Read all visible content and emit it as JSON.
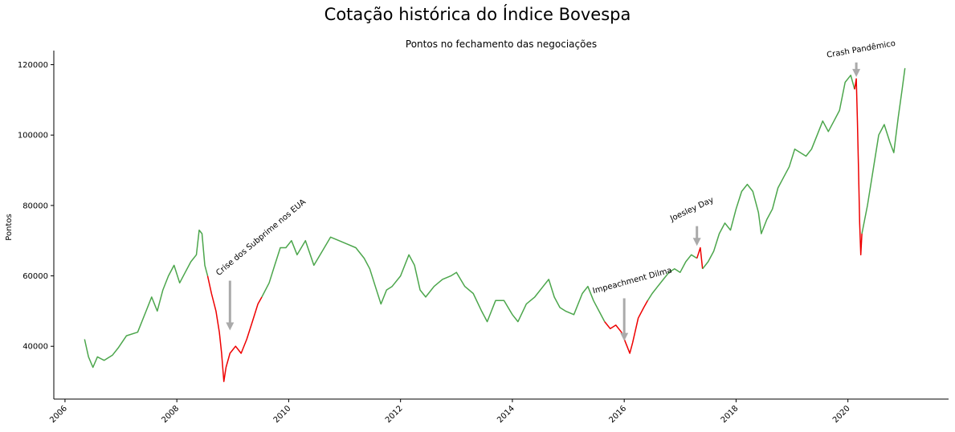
{
  "chart_data": {
    "type": "line",
    "title": "Cotação histórica do Índice Bovespa",
    "subtitle": "Pontos no fechamento das negociações",
    "xlabel": "",
    "ylabel": "Pontos",
    "xlim": [
      2005.8,
      2021.8
    ],
    "ylim": [
      25000,
      124000
    ],
    "x_ticks": [
      2006,
      2008,
      2010,
      2012,
      2014,
      2016,
      2018,
      2020
    ],
    "y_ticks": [
      40000,
      60000,
      80000,
      100000,
      120000
    ],
    "x_tick_labels": [
      "2006",
      "2008",
      "2010",
      "2012",
      "2014",
      "2016",
      "2018",
      "2020"
    ],
    "y_tick_labels": [
      "40000",
      "60000",
      "80000",
      "100000",
      "120000"
    ],
    "grid": false,
    "colors": {
      "normal": "#4ca64c",
      "crisis": "#ee0000",
      "arrow": "#aaaaaa"
    },
    "series": [
      {
        "values": [
          [
            2006.35,
            42000
          ],
          [
            2006.42,
            37000
          ],
          [
            2006.5,
            34000
          ],
          [
            2006.58,
            37000
          ],
          [
            2006.7,
            36000
          ],
          [
            2006.85,
            37500
          ],
          [
            2006.95,
            39500
          ],
          [
            2007.1,
            43000
          ],
          [
            2007.3,
            44000
          ],
          [
            2007.45,
            50000
          ],
          [
            2007.55,
            54000
          ],
          [
            2007.65,
            50000
          ],
          [
            2007.75,
            56000
          ],
          [
            2007.85,
            60000
          ],
          [
            2007.95,
            63000
          ],
          [
            2008.05,
            58000
          ],
          [
            2008.15,
            61000
          ],
          [
            2008.25,
            64000
          ],
          [
            2008.35,
            66000
          ],
          [
            2008.4,
            73000
          ],
          [
            2008.45,
            72000
          ],
          [
            2008.5,
            63000
          ],
          [
            2008.55,
            60000
          ]
        ]
      },
      {
        "crisis": true,
        "values": [
          [
            2008.55,
            60000
          ],
          [
            2008.62,
            55000
          ],
          [
            2008.7,
            50000
          ],
          [
            2008.76,
            44000
          ],
          [
            2008.8,
            38000
          ],
          [
            2008.84,
            30000
          ],
          [
            2008.88,
            34000
          ],
          [
            2008.95,
            38000
          ],
          [
            2009.05,
            40000
          ],
          [
            2009.15,
            38000
          ],
          [
            2009.25,
            42000
          ],
          [
            2009.35,
            47000
          ],
          [
            2009.45,
            52000
          ],
          [
            2009.52,
            54000
          ]
        ]
      },
      {
        "values": [
          [
            2009.52,
            54000
          ],
          [
            2009.65,
            58000
          ],
          [
            2009.75,
            63000
          ],
          [
            2009.85,
            68000
          ],
          [
            2009.95,
            68000
          ],
          [
            2010.05,
            70000
          ],
          [
            2010.15,
            66000
          ],
          [
            2010.3,
            70000
          ],
          [
            2010.45,
            63000
          ],
          [
            2010.6,
            67000
          ],
          [
            2010.75,
            71000
          ],
          [
            2010.9,
            70000
          ],
          [
            2011.05,
            69000
          ],
          [
            2011.2,
            68000
          ],
          [
            2011.35,
            65000
          ],
          [
            2011.45,
            62000
          ],
          [
            2011.55,
            57000
          ],
          [
            2011.65,
            52000
          ],
          [
            2011.75,
            56000
          ],
          [
            2011.85,
            57000
          ],
          [
            2012.0,
            60000
          ],
          [
            2012.15,
            66000
          ],
          [
            2012.25,
            63000
          ],
          [
            2012.35,
            56000
          ],
          [
            2012.45,
            54000
          ],
          [
            2012.6,
            57000
          ],
          [
            2012.75,
            59000
          ],
          [
            2012.9,
            60000
          ],
          [
            2013.0,
            61000
          ],
          [
            2013.15,
            57000
          ],
          [
            2013.3,
            55000
          ],
          [
            2013.45,
            50000
          ],
          [
            2013.55,
            47000
          ],
          [
            2013.7,
            53000
          ],
          [
            2013.85,
            53000
          ],
          [
            2014.0,
            49000
          ],
          [
            2014.1,
            47000
          ],
          [
            2014.25,
            52000
          ],
          [
            2014.4,
            54000
          ],
          [
            2014.55,
            57000
          ],
          [
            2014.65,
            59000
          ],
          [
            2014.75,
            54000
          ],
          [
            2014.85,
            51000
          ],
          [
            2014.95,
            50000
          ],
          [
            2015.1,
            49000
          ],
          [
            2015.25,
            55000
          ],
          [
            2015.35,
            57000
          ],
          [
            2015.45,
            53000
          ],
          [
            2015.55,
            50000
          ],
          [
            2015.65,
            47000
          ]
        ]
      },
      {
        "crisis": true,
        "values": [
          [
            2015.65,
            47000
          ],
          [
            2015.75,
            45000
          ],
          [
            2015.85,
            46000
          ],
          [
            2015.95,
            44000
          ],
          [
            2016.05,
            40000
          ],
          [
            2016.1,
            38000
          ],
          [
            2016.15,
            41000
          ],
          [
            2016.25,
            48000
          ],
          [
            2016.35,
            51000
          ],
          [
            2016.42,
            53000
          ]
        ]
      },
      {
        "values": [
          [
            2016.42,
            53000
          ],
          [
            2016.5,
            55000
          ],
          [
            2016.6,
            57000
          ],
          [
            2016.7,
            59000
          ],
          [
            2016.8,
            61000
          ],
          [
            2016.9,
            62000
          ],
          [
            2017.0,
            61000
          ],
          [
            2017.1,
            64000
          ],
          [
            2017.2,
            66000
          ],
          [
            2017.3,
            65000
          ]
        ]
      },
      {
        "crisis": true,
        "values": [
          [
            2017.3,
            65000
          ],
          [
            2017.36,
            68000
          ],
          [
            2017.4,
            62000
          ]
        ]
      },
      {
        "values": [
          [
            2017.4,
            62000
          ],
          [
            2017.5,
            64000
          ],
          [
            2017.6,
            67000
          ],
          [
            2017.7,
            72000
          ],
          [
            2017.8,
            75000
          ],
          [
            2017.9,
            73000
          ],
          [
            2018.0,
            79000
          ],
          [
            2018.1,
            84000
          ],
          [
            2018.2,
            86000
          ],
          [
            2018.3,
            84000
          ],
          [
            2018.4,
            78000
          ],
          [
            2018.45,
            72000
          ],
          [
            2018.55,
            76000
          ],
          [
            2018.65,
            79000
          ],
          [
            2018.75,
            85000
          ],
          [
            2018.85,
            88000
          ],
          [
            2018.95,
            91000
          ],
          [
            2019.05,
            96000
          ],
          [
            2019.15,
            95000
          ],
          [
            2019.25,
            94000
          ],
          [
            2019.35,
            96000
          ],
          [
            2019.45,
            100000
          ],
          [
            2019.55,
            104000
          ],
          [
            2019.65,
            101000
          ],
          [
            2019.75,
            104000
          ],
          [
            2019.85,
            107000
          ],
          [
            2019.95,
            115000
          ],
          [
            2020.05,
            117000
          ],
          [
            2020.12,
            113000
          ]
        ]
      },
      {
        "crisis": true,
        "values": [
          [
            2020.12,
            113000
          ],
          [
            2020.15,
            116000
          ],
          [
            2020.17,
            104000
          ],
          [
            2020.19,
            90000
          ],
          [
            2020.21,
            75000
          ],
          [
            2020.23,
            66000
          ],
          [
            2020.25,
            72000
          ]
        ]
      },
      {
        "values": [
          [
            2020.25,
            72000
          ],
          [
            2020.35,
            80000
          ],
          [
            2020.45,
            90000
          ],
          [
            2020.55,
            100000
          ],
          [
            2020.65,
            103000
          ],
          [
            2020.75,
            98000
          ],
          [
            2020.82,
            95000
          ],
          [
            2020.9,
            105000
          ],
          [
            2020.97,
            113000
          ],
          [
            2021.02,
            119000
          ]
        ]
      }
    ],
    "annotations": [
      {
        "text": "Crise dos Subprime nos EUA",
        "x": 2008.95,
        "y": 44500,
        "text_x": 2008.75,
        "text_y": 60000,
        "angle": 40,
        "size": 10
      },
      {
        "text": "Impeachment Dilma",
        "x": 2016.0,
        "y": 41500,
        "text_x": 2015.45,
        "text_y": 55000,
        "angle": 15,
        "size": 9
      },
      {
        "text": "Joesley Day",
        "x": 2017.3,
        "y": 68500,
        "text_x": 2016.85,
        "text_y": 75500,
        "angle": 25,
        "size": 10
      },
      {
        "text": "Crash Pandêmico",
        "x": 2020.15,
        "y": 116500,
        "text_x": 2019.63,
        "text_y": 122000,
        "angle": 10,
        "size": 10
      }
    ]
  }
}
